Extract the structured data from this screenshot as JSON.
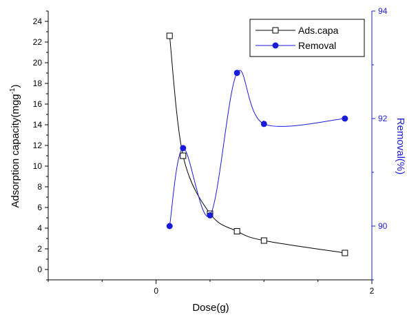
{
  "chart_data": {
    "type": "line",
    "xlabel": "Dose(g)",
    "ylabel": "Adsorption capacity(mgg",
    "ylabel_superscript": "-1",
    "ylabel_suffix": ")",
    "y2label": "Removal(%)",
    "xlim": [
      -1,
      2
    ],
    "ylim": [
      -1,
      25
    ],
    "y2lim": [
      89,
      94
    ],
    "x_ticks": [
      0,
      2
    ],
    "x_minor_ticks": [
      -1,
      -0.5,
      0.5,
      1,
      1.5
    ],
    "y_ticks": [
      0,
      2,
      4,
      6,
      8,
      10,
      12,
      14,
      16,
      18,
      20,
      22,
      24
    ],
    "y2_ticks": [
      90,
      92,
      94
    ],
    "legend_position": "top-right",
    "colors": {
      "left": "#000000",
      "right": "#1a1adb"
    },
    "series": [
      {
        "name": "Ads.capa",
        "axis": "left",
        "marker": "open-square",
        "x": [
          0.125,
          0.25,
          0.5,
          0.75,
          1.0,
          1.75
        ],
        "y": [
          22.6,
          11.0,
          5.4,
          3.7,
          2.8,
          1.6
        ]
      },
      {
        "name": "Removal",
        "axis": "right",
        "marker": "filled-circle",
        "x": [
          0.125,
          0.25,
          0.5,
          0.75,
          1.0,
          1.75
        ],
        "y": [
          90.0,
          91.45,
          90.2,
          92.85,
          91.9,
          92.0
        ]
      }
    ]
  }
}
